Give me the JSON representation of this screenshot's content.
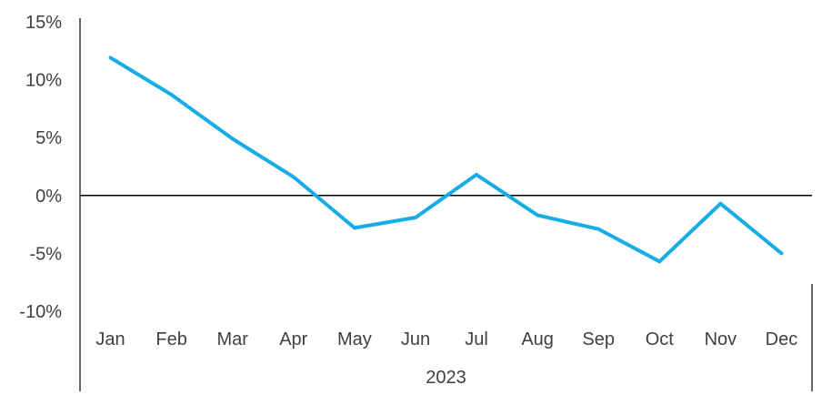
{
  "chart_data": {
    "type": "line",
    "title": "",
    "xlabel": "",
    "ylabel": "",
    "x_group_label": "2023",
    "categories": [
      "Jan",
      "Feb",
      "Mar",
      "Apr",
      "May",
      "Jun",
      "Jul",
      "Aug",
      "Sep",
      "Oct",
      "Nov",
      "Dec"
    ],
    "series": [
      {
        "values": [
          11.9,
          8.7,
          4.9,
          1.6,
          -2.8,
          -1.9,
          1.8,
          -1.7,
          -2.9,
          -5.7,
          -0.7,
          -5.0
        ],
        "color": "#16ade6"
      }
    ],
    "ylim": [
      -10,
      15
    ],
    "yticks": [
      -10,
      -5,
      0,
      5,
      10,
      15
    ],
    "ytick_labels": [
      "-10%",
      "-5%",
      "0%",
      "5%",
      "10%",
      "15%"
    ],
    "grid": false,
    "legend": "none",
    "zero_line_color": "#000000",
    "axis_color": "#000000"
  }
}
